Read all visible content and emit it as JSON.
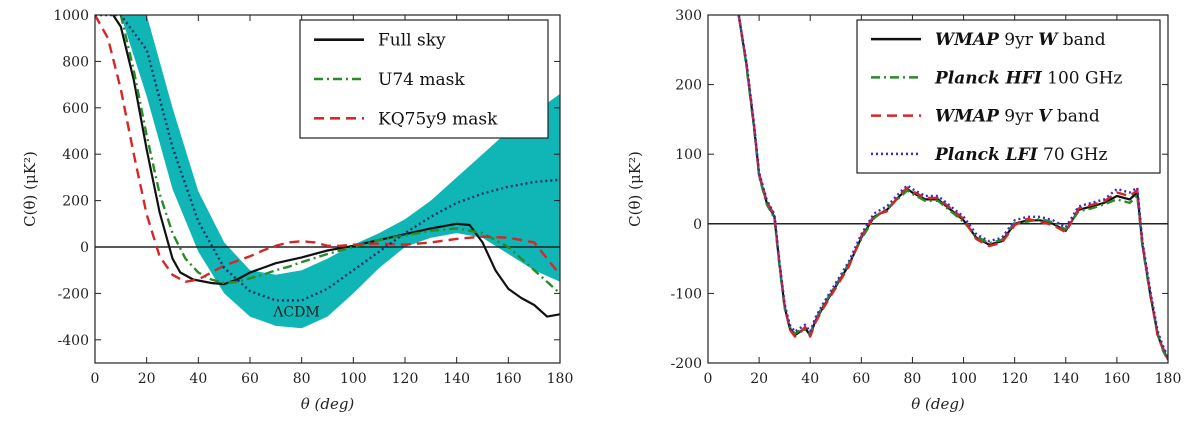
{
  "chart_data": [
    {
      "type": "line",
      "xlabel": "θ (deg)",
      "ylabel": "C(θ) (μK²)",
      "xlim": [
        0,
        180
      ],
      "ylim": [
        -500,
        1000
      ],
      "xticks": [
        "0",
        "20",
        "40",
        "60",
        "80",
        "100",
        "120",
        "140",
        "160",
        "180"
      ],
      "yticks": [
        "-400",
        "-200",
        "0",
        "200",
        "400",
        "600",
        "800",
        "1000"
      ],
      "legend_position": "top-right",
      "annotation": {
        "text": "ΛCDM",
        "x": 78,
        "y": -300
      },
      "band": {
        "name": "ΛCDM",
        "color": "#10b5b5",
        "x": [
          0,
          10,
          20,
          30,
          40,
          50,
          60,
          70,
          80,
          90,
          100,
          110,
          120,
          130,
          140,
          150,
          160,
          170,
          180
        ],
        "lower": [
          1000,
          1000,
          650,
          250,
          -20,
          -200,
          -300,
          -340,
          -350,
          -300,
          -200,
          -90,
          0,
          40,
          60,
          40,
          -30,
          -100,
          -150
        ],
        "upper": [
          1000,
          1000,
          1000,
          600,
          240,
          20,
          -100,
          -120,
          -100,
          -50,
          10,
          60,
          120,
          200,
          300,
          400,
          500,
          580,
          660
        ]
      },
      "series": [
        {
          "name": "Full sky",
          "style": "solid",
          "color": "#111111",
          "x": [
            7,
            10,
            15,
            20,
            25,
            30,
            33,
            38,
            45,
            50,
            55,
            60,
            65,
            70,
            80,
            90,
            100,
            110,
            120,
            130,
            140,
            145,
            150,
            155,
            160,
            165,
            170,
            175,
            180
          ],
          "y": [
            1000,
            950,
            720,
            420,
            150,
            -50,
            -110,
            -140,
            -155,
            -160,
            -140,
            -110,
            -90,
            -70,
            -45,
            -15,
            5,
            30,
            55,
            80,
            100,
            95,
            20,
            -100,
            -180,
            -220,
            -250,
            -300,
            -290
          ]
        },
        {
          "name": "U74 mask",
          "style": "dashdot",
          "color": "#2a8a2a",
          "x": [
            10,
            15,
            20,
            25,
            30,
            35,
            40,
            45,
            50,
            55,
            60,
            65,
            70,
            75,
            80,
            90,
            100,
            110,
            120,
            130,
            140,
            150,
            160,
            170,
            180
          ],
          "y": [
            1000,
            760,
            480,
            230,
            60,
            -50,
            -110,
            -140,
            -155,
            -150,
            -135,
            -120,
            -100,
            -85,
            -65,
            -30,
            0,
            30,
            50,
            70,
            80,
            60,
            0,
            -100,
            -200
          ]
        },
        {
          "name": "KQ75y9 mask",
          "style": "dashed",
          "color": "#d62728",
          "x": [
            0,
            5,
            10,
            15,
            20,
            25,
            30,
            35,
            40,
            45,
            50,
            55,
            60,
            65,
            70,
            75,
            80,
            85,
            90,
            95,
            100,
            110,
            120,
            130,
            140,
            150,
            160,
            170,
            175,
            180
          ],
          "y": [
            1000,
            900,
            680,
            400,
            140,
            -40,
            -120,
            -150,
            -140,
            -110,
            -80,
            -60,
            -40,
            -15,
            5,
            20,
            25,
            20,
            5,
            5,
            10,
            15,
            10,
            20,
            35,
            45,
            40,
            20,
            -50,
            -120
          ]
        },
        {
          "name": "",
          "style": "dotted",
          "color": "#10306a",
          "x": [
            0,
            10,
            20,
            30,
            40,
            50,
            60,
            70,
            80,
            90,
            100,
            110,
            120,
            130,
            140,
            150,
            160,
            170,
            180
          ],
          "y": [
            1000,
            1000,
            850,
            430,
            110,
            -90,
            -190,
            -230,
            -230,
            -180,
            -100,
            -20,
            60,
            130,
            190,
            230,
            260,
            280,
            290
          ]
        }
      ]
    },
    {
      "type": "line",
      "xlabel": "θ (deg)",
      "ylabel": "C(θ) (μK²)",
      "xlim": [
        0,
        180
      ],
      "ylim": [
        -200,
        300
      ],
      "xticks": [
        "0",
        "20",
        "40",
        "60",
        "80",
        "100",
        "120",
        "140",
        "160",
        "180"
      ],
      "yticks": [
        "-200",
        "-100",
        "0",
        "100",
        "200",
        "300"
      ],
      "legend_position": "top-right",
      "series": [
        {
          "name_parts": [
            "WMAP",
            " 9yr ",
            "W",
            " band"
          ],
          "style": "solid",
          "color": "#111111",
          "x": [
            12,
            15,
            18,
            20,
            23,
            26,
            28,
            30,
            32,
            34,
            36,
            38,
            40,
            42,
            45,
            50,
            55,
            60,
            65,
            70,
            75,
            78,
            80,
            85,
            90,
            95,
            100,
            105,
            110,
            115,
            120,
            125,
            130,
            135,
            140,
            145,
            150,
            155,
            160,
            165,
            168,
            170,
            173,
            176,
            178,
            180
          ],
          "y": [
            300,
            230,
            140,
            70,
            30,
            10,
            -60,
            -120,
            -150,
            -160,
            -155,
            -150,
            -160,
            -140,
            -120,
            -90,
            -60,
            -20,
            10,
            20,
            40,
            50,
            45,
            35,
            35,
            20,
            5,
            -20,
            -30,
            -25,
            0,
            5,
            5,
            0,
            -10,
            20,
            25,
            30,
            40,
            35,
            45,
            -30,
            -100,
            -160,
            -180,
            -195
          ]
        },
        {
          "name_parts": [
            "Planck HFI",
            " 100 GHz",
            "",
            ""
          ],
          "style": "dashdot",
          "color": "#2a8a2a",
          "x": [
            12,
            15,
            18,
            20,
            23,
            26,
            28,
            30,
            32,
            34,
            36,
            38,
            40,
            42,
            45,
            50,
            55,
            60,
            65,
            70,
            75,
            78,
            80,
            85,
            90,
            95,
            100,
            105,
            110,
            115,
            120,
            125,
            130,
            135,
            140,
            145,
            150,
            155,
            160,
            165,
            168,
            170,
            173,
            176,
            178,
            180
          ],
          "y": [
            300,
            228,
            138,
            68,
            28,
            8,
            -62,
            -122,
            -148,
            -158,
            -153,
            -152,
            -158,
            -138,
            -118,
            -88,
            -58,
            -22,
            8,
            22,
            38,
            48,
            43,
            33,
            33,
            18,
            3,
            -18,
            -28,
            -23,
            2,
            3,
            7,
            2,
            -8,
            18,
            22,
            28,
            35,
            30,
            40,
            -32,
            -102,
            -158,
            -182,
            -196
          ]
        },
        {
          "name_parts": [
            "WMAP",
            " 9yr ",
            "V",
            " band"
          ],
          "style": "dashed",
          "color": "#d62728",
          "x": [
            12,
            15,
            18,
            20,
            23,
            26,
            28,
            30,
            32,
            34,
            36,
            38,
            40,
            42,
            45,
            50,
            55,
            60,
            65,
            70,
            75,
            78,
            80,
            85,
            90,
            95,
            100,
            105,
            110,
            115,
            120,
            125,
            130,
            135,
            140,
            145,
            150,
            155,
            160,
            165,
            168,
            170,
            173,
            176,
            178,
            180
          ],
          "y": [
            300,
            232,
            142,
            72,
            32,
            12,
            -58,
            -118,
            -152,
            -162,
            -157,
            -148,
            -162,
            -142,
            -122,
            -92,
            -62,
            -18,
            12,
            18,
            42,
            52,
            47,
            37,
            37,
            22,
            7,
            -22,
            -32,
            -27,
            -2,
            7,
            3,
            -2,
            -12,
            22,
            27,
            32,
            45,
            40,
            48,
            -28,
            -98,
            -162,
            -178,
            -194
          ]
        },
        {
          "name_parts": [
            "Planck LFI",
            " 70 GHz",
            "",
            ""
          ],
          "style": "dotted",
          "color": "#3b2dbf",
          "x": [
            12,
            15,
            18,
            20,
            23,
            26,
            28,
            30,
            32,
            34,
            36,
            38,
            40,
            42,
            45,
            50,
            55,
            60,
            65,
            70,
            75,
            78,
            80,
            85,
            90,
            95,
            100,
            105,
            110,
            115,
            120,
            125,
            130,
            135,
            140,
            145,
            150,
            155,
            160,
            165,
            168,
            170,
            173,
            176,
            178,
            180
          ],
          "y": [
            300,
            234,
            144,
            74,
            34,
            14,
            -56,
            -116,
            -145,
            -155,
            -150,
            -145,
            -155,
            -135,
            -115,
            -85,
            -55,
            -15,
            15,
            25,
            45,
            55,
            50,
            40,
            40,
            25,
            10,
            -15,
            -25,
            -20,
            5,
            10,
            10,
            5,
            -5,
            25,
            30,
            35,
            50,
            45,
            52,
            -25,
            -95,
            -155,
            -175,
            -192
          ]
        }
      ]
    }
  ]
}
